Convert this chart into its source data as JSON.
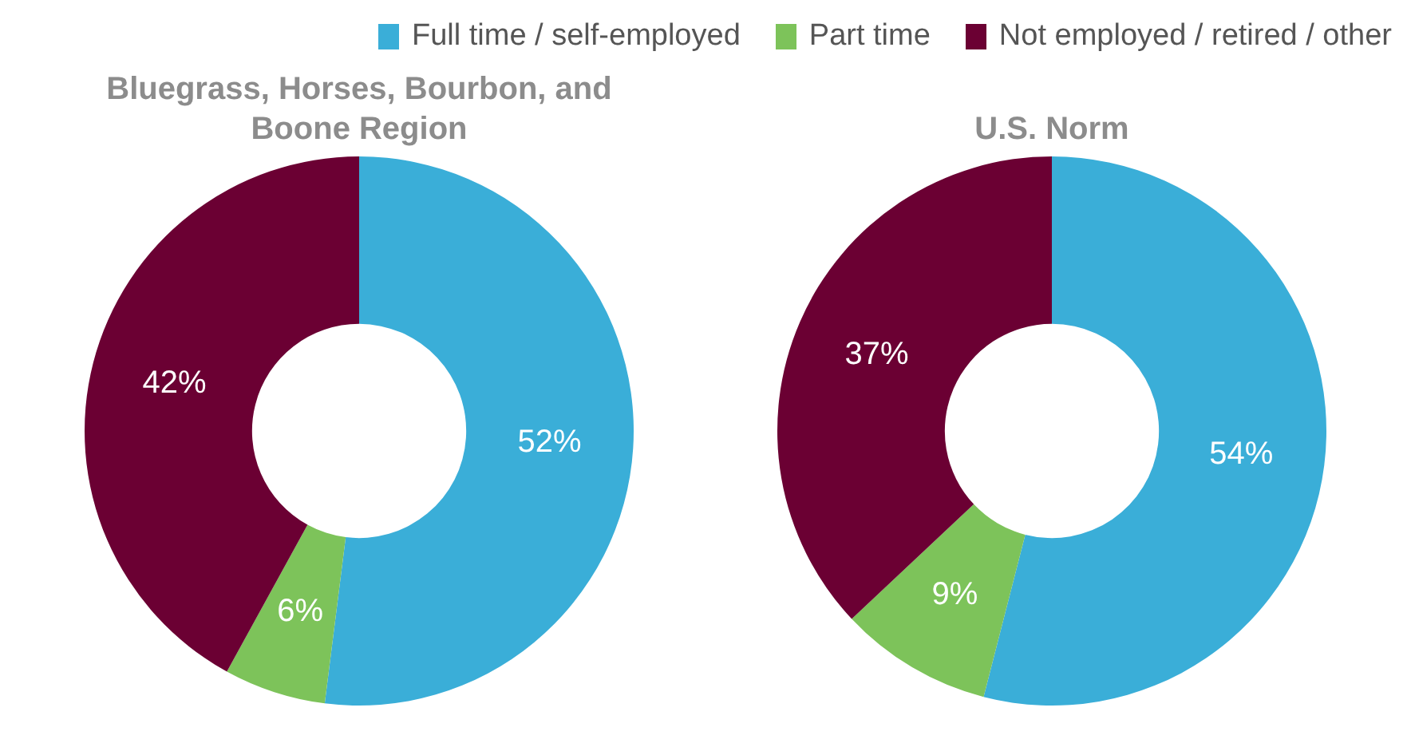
{
  "chart_data": [
    {
      "type": "donut",
      "title": "Bluegrass, Horses, Bourbon, and Boone Region",
      "categories": [
        "Full time / self-employed",
        "Part time",
        "Not employed / retired / other"
      ],
      "values": [
        52,
        6,
        42
      ],
      "value_labels": [
        "52%",
        "6%",
        "42%"
      ],
      "colors": [
        "#3aaed8",
        "#7dc35a",
        "#6b0033"
      ],
      "legend": "top"
    },
    {
      "type": "donut",
      "title": "U.S. Norm",
      "values": [
        54,
        9,
        37
      ],
      "value_labels": [
        "54%",
        "9%",
        "37%"
      ],
      "colors": [
        "#3aaed8",
        "#7dc35a",
        "#6b0033"
      ]
    }
  ]
}
